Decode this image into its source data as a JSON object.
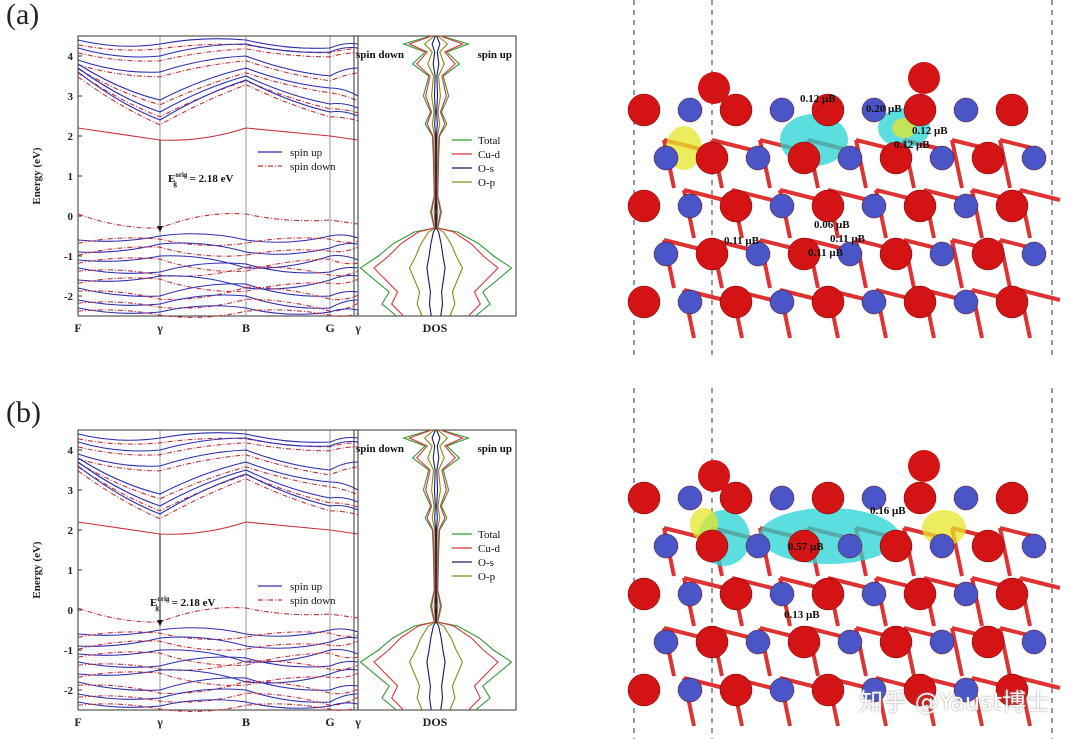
{
  "panels": [
    {
      "label": "(a)",
      "gap_label": "E",
      "gap_super": "orig",
      "gap_sub": "g",
      "gap_value": "= 2.18 eV",
      "spin_down_label": "spin down",
      "spin_up_label": "spin up",
      "moments": [
        "0.12 μB",
        "0.20 μB",
        "0.12 μB",
        "0.12 μB",
        "0.06 μB",
        "0.11 μB",
        "0.11 μB",
        "0.11 μB"
      ]
    },
    {
      "label": "(b)",
      "gap_label": "E",
      "gap_super": "orig",
      "gap_sub": "g",
      "gap_value": "= 2.18 eV",
      "spin_down_label": "spin down",
      "spin_up_label": "spin up",
      "moments": [
        "0.16 μB",
        "0.57 μB",
        "0.13 μB"
      ]
    }
  ],
  "band_legend": [
    "spin up",
    "spin down"
  ],
  "dos_legend": [
    "Total",
    "Cu-d",
    "O-s",
    "O-p"
  ],
  "kpoints": [
    "F",
    "γ",
    "B",
    "G",
    "γ"
  ],
  "dos_xlabel": "DOS",
  "ylabel": "Energy (eV)",
  "yticks": [
    "4",
    "3",
    "2",
    "1",
    "0",
    "-1",
    "-2"
  ],
  "watermark": "知乎 @Yaust博士",
  "colors": {
    "spin_up": "#2b2bb0",
    "spin_down": "#c8303a",
    "total": "#2e9a2e",
    "cu_d": "#d9363e",
    "o_s": "#1a1a6e",
    "o_p": "#8a8a10",
    "cyan": "#27d3d3",
    "yellow": "#e6e62a",
    "o_atom": "#d41414",
    "cu_atom": "#4a55c8"
  },
  "chart_data": [
    {
      "type": "line",
      "title": "",
      "xlabel": "",
      "ylabel": "Energy (eV)",
      "ylim": [
        -2.5,
        4.5
      ],
      "x_ticks": [
        "F",
        "γ",
        "B",
        "G",
        "γ"
      ],
      "series": [
        {
          "name": "spin up",
          "values": []
        },
        {
          "name": "spin down",
          "values": []
        }
      ],
      "annotations": [
        "E_g^orig = 2.18 eV"
      ]
    },
    {
      "type": "line",
      "title": "",
      "xlabel": "DOS",
      "ylabel": "",
      "ylim": [
        -2.5,
        4.5
      ],
      "series": [
        {
          "name": "Total",
          "values": []
        },
        {
          "name": "Cu-d",
          "values": []
        },
        {
          "name": "O-s",
          "values": []
        },
        {
          "name": "O-p",
          "values": []
        }
      ]
    }
  ]
}
